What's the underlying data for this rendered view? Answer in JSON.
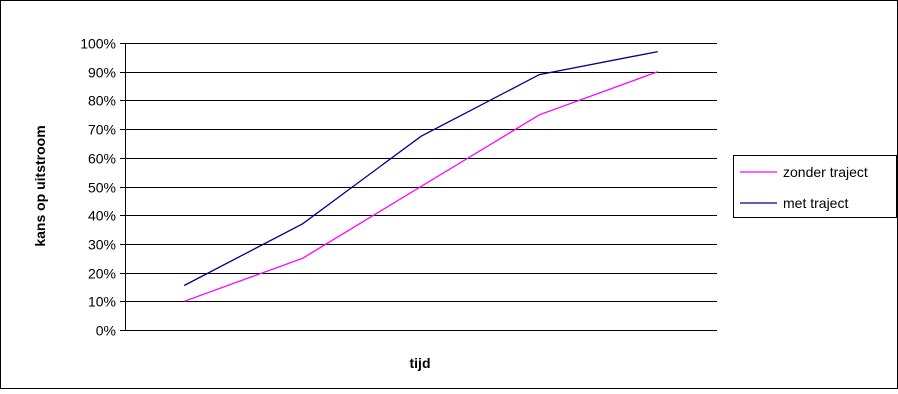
{
  "chart_data": {
    "type": "line",
    "title": "",
    "xlabel": "tijd",
    "ylabel": "kans op uitstroom",
    "ylim": [
      0,
      1
    ],
    "y_ticks": [
      "0%",
      "10%",
      "20%",
      "30%",
      "40%",
      "50%",
      "60%",
      "70%",
      "80%",
      "90%",
      "100%"
    ],
    "grid": "horizontal",
    "legend_position": "right",
    "x": [
      1,
      2,
      3,
      4,
      5
    ],
    "series": [
      {
        "name": "zonder traject",
        "color": "#ff00ff",
        "values": [
          0.1,
          0.25,
          0.5,
          0.75,
          0.9
        ]
      },
      {
        "name": "met traject",
        "color": "#00008b",
        "values": [
          0.155,
          0.37,
          0.675,
          0.89,
          0.97
        ]
      }
    ]
  }
}
